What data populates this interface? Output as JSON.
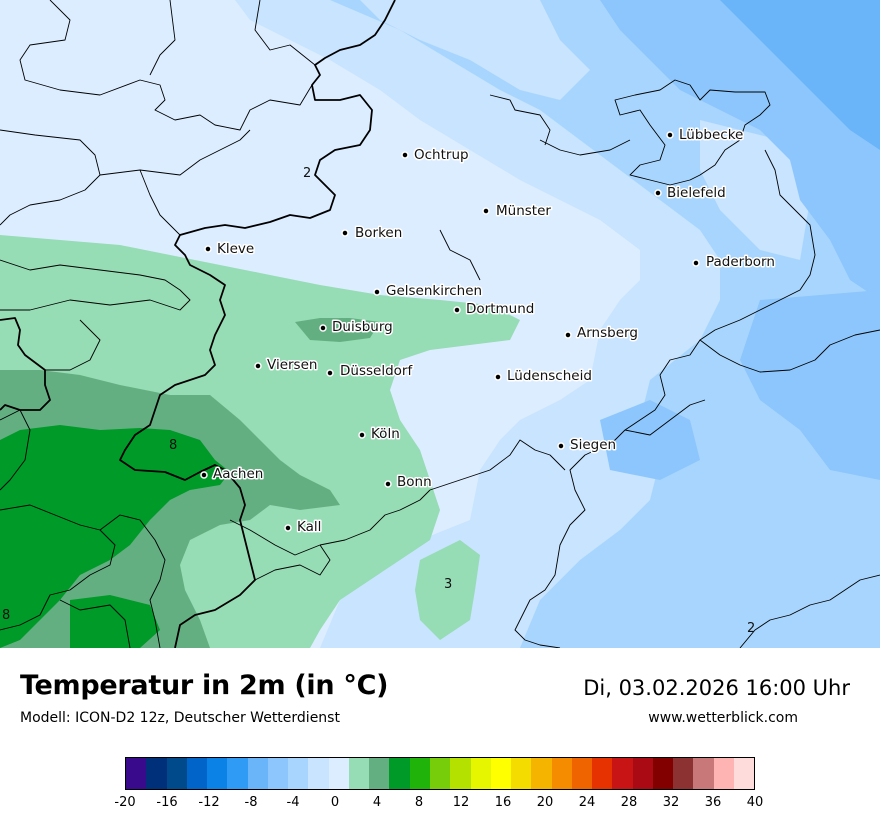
{
  "title": "Temperatur in 2m (in °C)",
  "model": "Modell: ICON-D2 12z, Deutscher Wetterdienst",
  "datetime": "Di, 03.02.2026 16:00 Uhr",
  "website": "www.wetterblick.com",
  "cities": [
    {
      "name": "Lübbecke"
    },
    {
      "name": "Ochtrup"
    },
    {
      "name": "Bielefeld"
    },
    {
      "name": "Münster"
    },
    {
      "name": "Borken"
    },
    {
      "name": "Kleve"
    },
    {
      "name": "Paderborn"
    },
    {
      "name": "Gelsenkirchen"
    },
    {
      "name": "Dortmund"
    },
    {
      "name": "Duisburg"
    },
    {
      "name": "Arnsberg"
    },
    {
      "name": "Viersen"
    },
    {
      "name": "Düsseldorf"
    },
    {
      "name": "Lüdenscheid"
    },
    {
      "name": "Köln"
    },
    {
      "name": "Siegen"
    },
    {
      "name": "Aachen"
    },
    {
      "name": "Bonn"
    },
    {
      "name": "Kall"
    }
  ],
  "contour_labels": [
    "2",
    "8",
    "3",
    "8",
    "2"
  ],
  "legend": {
    "colors": [
      "#3a0a8c",
      "#00307a",
      "#004a8c",
      "#0064c8",
      "#0a82e6",
      "#2f9bf5",
      "#6ab4fa",
      "#8cc6fc",
      "#a8d5fd",
      "#c8e4fe",
      "#dcedff",
      "#96dcb4",
      "#64af82",
      "#009a28",
      "#20b40a",
      "#78cd0a",
      "#b4e100",
      "#e6f500",
      "#ffff00",
      "#f5dc00",
      "#f5b400",
      "#f58c00",
      "#f06400",
      "#e63200",
      "#c81414",
      "#aa0a14",
      "#820000",
      "#8c3232",
      "#c87878",
      "#ffb4b4",
      "#ffdcdc"
    ],
    "ticks": [
      "-20",
      "-16",
      "-12",
      "-8",
      "-4",
      "0",
      "4",
      "8",
      "12",
      "16",
      "20",
      "24",
      "28",
      "32",
      "36",
      "40"
    ],
    "min": -20,
    "max": 40
  }
}
